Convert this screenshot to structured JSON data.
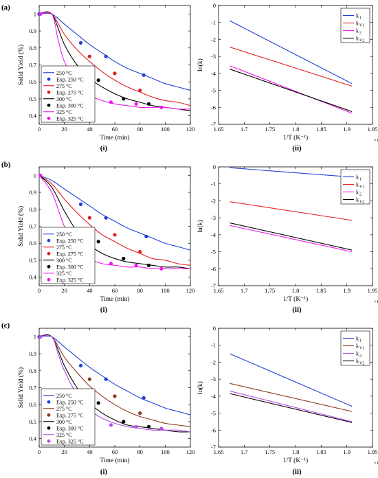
{
  "panel_labels": [
    "(a)",
    "(b)",
    "(c)"
  ],
  "sub_labels": [
    "(i)",
    "(ii)"
  ],
  "chart_data": [
    {
      "type": "line",
      "row": 0,
      "col": 0,
      "xlabel": "Time (min)",
      "ylabel": "Solid Yield (%)",
      "xlim": [
        0,
        120
      ],
      "ylim": [
        0.35,
        1.05
      ],
      "xticks": [
        0,
        20,
        40,
        60,
        80,
        100,
        120
      ],
      "xtick_labels": [
        "0",
        "20",
        "40",
        "60",
        "80",
        "100",
        "120"
      ],
      "yticks": [
        0.4,
        0.5,
        0.6,
        0.7,
        0.8,
        0.9,
        1.0
      ],
      "ytick_labels": [
        "0.4",
        "0.5",
        "0.6",
        "0.7",
        "0.8",
        "0.9",
        "1"
      ],
      "grid": false,
      "legend_position": "bottom-left",
      "series": [
        {
          "name": "250 °C",
          "kind": "line",
          "color": "#1f3fd8",
          "x": [
            0,
            10,
            20,
            30,
            40,
            50,
            60,
            70,
            80,
            90,
            100,
            110,
            120
          ],
          "y": [
            1.0,
            1.0,
            0.94,
            0.88,
            0.82,
            0.77,
            0.72,
            0.68,
            0.65,
            0.62,
            0.59,
            0.57,
            0.55
          ]
        },
        {
          "name": "Exp. 250 °C",
          "kind": "marker",
          "color": "#1f3fd8",
          "x": [
            0,
            33,
            53,
            83
          ],
          "y": [
            1.0,
            0.83,
            0.75,
            0.64
          ]
        },
        {
          "name": "275 °C",
          "kind": "line",
          "color": "#e01f1f",
          "x": [
            0,
            10,
            20,
            30,
            40,
            50,
            60,
            70,
            80,
            90,
            100,
            110,
            120
          ],
          "y": [
            1.0,
            1.0,
            0.88,
            0.79,
            0.72,
            0.66,
            0.61,
            0.57,
            0.54,
            0.51,
            0.49,
            0.48,
            0.46
          ]
        },
        {
          "name": "Exp. 275 °C",
          "kind": "marker",
          "color": "#e01f1f",
          "x": [
            40,
            60,
            80
          ],
          "y": [
            0.75,
            0.65,
            0.55
          ]
        },
        {
          "name": "300 °C",
          "kind": "line",
          "color": "#000000",
          "x": [
            0,
            10,
            20,
            30,
            40,
            50,
            60,
            70,
            80,
            90,
            100,
            110,
            120
          ],
          "y": [
            1.0,
            1.0,
            0.82,
            0.7,
            0.62,
            0.57,
            0.53,
            0.5,
            0.48,
            0.46,
            0.45,
            0.44,
            0.43
          ]
        },
        {
          "name": "Exp. 300 °C",
          "kind": "marker",
          "color": "#000000",
          "x": [
            47,
            67,
            87
          ],
          "y": [
            0.61,
            0.5,
            0.47
          ]
        },
        {
          "name": "325 °C",
          "kind": "line",
          "color": "#ee18ee",
          "x": [
            0,
            10,
            15,
            20,
            30,
            40,
            50,
            60,
            70,
            80,
            90,
            100,
            110,
            120
          ],
          "y": [
            1.0,
            1.0,
            0.85,
            0.72,
            0.59,
            0.52,
            0.49,
            0.47,
            0.46,
            0.45,
            0.45,
            0.45,
            0.44,
            0.44
          ]
        },
        {
          "name": "Exp. 325 °C",
          "kind": "marker",
          "color": "#ee18ee",
          "x": [
            1,
            57,
            77,
            97
          ],
          "y": [
            1.0,
            0.48,
            0.47,
            0.45
          ]
        }
      ]
    },
    {
      "type": "line",
      "row": 0,
      "col": 1,
      "xlabel": "1/T (K⁻¹)",
      "ylabel": "ln(k)",
      "x_multiplier": "×10⁻³",
      "xlim": [
        1.65,
        1.95
      ],
      "ylim": [
        -7,
        0
      ],
      "xticks": [
        1.65,
        1.7,
        1.75,
        1.8,
        1.85,
        1.9,
        1.95
      ],
      "xtick_labels": [
        "1.65",
        "1.7",
        "1.75",
        "1.8",
        "1.85",
        "1.9",
        "1.95"
      ],
      "yticks": [
        0,
        -1,
        -2,
        -3,
        -4,
        -5,
        -6,
        -7
      ],
      "ytick_labels": [
        "0",
        "-1",
        "-2",
        "-3",
        "-4",
        "-5",
        "-6",
        "-7"
      ],
      "grid": false,
      "legend_position": "top-right",
      "series": [
        {
          "name": "k",
          "sub": "1",
          "color": "#1f3fd8",
          "x": [
            1.672,
            1.91
          ],
          "y": [
            -0.9,
            -4.6
          ]
        },
        {
          "name": "k",
          "sub": "V1",
          "color": "#e01f1f",
          "x": [
            1.672,
            1.91
          ],
          "y": [
            -2.45,
            -4.75
          ]
        },
        {
          "name": "k",
          "sub": "2",
          "color": "#ee18ee",
          "x": [
            1.672,
            1.91
          ],
          "y": [
            -3.55,
            -6.35
          ]
        },
        {
          "name": "k",
          "sub": "V2",
          "color": "#000000",
          "x": [
            1.672,
            1.91
          ],
          "y": [
            -3.75,
            -6.25
          ]
        }
      ]
    },
    {
      "type": "line",
      "row": 1,
      "col": 0,
      "xlabel": "Time (min)",
      "ylabel": "Solid Yield (%)",
      "xlim": [
        0,
        120
      ],
      "ylim": [
        0.35,
        1.05
      ],
      "xticks": [
        0,
        20,
        40,
        60,
        80,
        100,
        120
      ],
      "xtick_labels": [
        "0",
        "20",
        "40",
        "60",
        "80",
        "100",
        "120"
      ],
      "yticks": [
        0.4,
        0.5,
        0.6,
        0.7,
        0.8,
        0.9,
        1.0
      ],
      "ytick_labels": [
        "0.4",
        "0.5",
        "0.6",
        "0.7",
        "0.8",
        "0.9",
        "1"
      ],
      "grid": false,
      "legend_position": "bottom-left",
      "series": [
        {
          "name": "250 °C",
          "kind": "line",
          "color": "#1f3fd8",
          "x": [
            0,
            10,
            20,
            30,
            40,
            50,
            60,
            70,
            80,
            90,
            100,
            110,
            120
          ],
          "y": [
            1.0,
            0.97,
            0.92,
            0.87,
            0.82,
            0.77,
            0.73,
            0.69,
            0.66,
            0.63,
            0.6,
            0.58,
            0.56
          ]
        },
        {
          "name": "Exp. 250 °C",
          "kind": "marker",
          "color": "#1f3fd8",
          "x": [
            33,
            53,
            85
          ],
          "y": [
            0.83,
            0.75,
            0.64
          ]
        },
        {
          "name": "275 °C",
          "kind": "line",
          "color": "#e01f1f",
          "x": [
            0,
            10,
            20,
            30,
            40,
            50,
            60,
            70,
            80,
            90,
            100,
            110,
            120
          ],
          "y": [
            1.0,
            0.95,
            0.86,
            0.78,
            0.71,
            0.65,
            0.61,
            0.57,
            0.54,
            0.51,
            0.5,
            0.48,
            0.47
          ]
        },
        {
          "name": "Exp. 275 °C",
          "kind": "marker",
          "color": "#e01f1f",
          "x": [
            40,
            60,
            80
          ],
          "y": [
            0.75,
            0.65,
            0.55
          ]
        },
        {
          "name": "300 °C",
          "kind": "line",
          "color": "#000000",
          "x": [
            0,
            10,
            20,
            30,
            40,
            50,
            60,
            70,
            80,
            90,
            100,
            110,
            120
          ],
          "y": [
            1.0,
            0.93,
            0.79,
            0.67,
            0.59,
            0.54,
            0.51,
            0.49,
            0.48,
            0.47,
            0.46,
            0.46,
            0.45
          ]
        },
        {
          "name": "Exp. 300 °C",
          "kind": "marker",
          "color": "#000000",
          "x": [
            47,
            67,
            87
          ],
          "y": [
            0.61,
            0.51,
            0.47
          ]
        },
        {
          "name": "325 °C",
          "kind": "line",
          "color": "#ee18ee",
          "x": [
            0,
            10,
            20,
            30,
            40,
            50,
            60,
            70,
            80,
            90,
            100,
            110,
            120
          ],
          "y": [
            1.0,
            0.9,
            0.7,
            0.57,
            0.51,
            0.48,
            0.47,
            0.46,
            0.46,
            0.45,
            0.45,
            0.45,
            0.45
          ]
        },
        {
          "name": "Exp. 325 °C",
          "kind": "marker",
          "color": "#ee18ee",
          "x": [
            1,
            57,
            77,
            97
          ],
          "y": [
            1.0,
            0.48,
            0.47,
            0.45
          ]
        }
      ]
    },
    {
      "type": "line",
      "row": 1,
      "col": 1,
      "xlabel": "1/T (K⁻¹)",
      "ylabel": "ln(k)",
      "x_multiplier": "×10⁻³",
      "xlim": [
        1.65,
        1.95
      ],
      "ylim": [
        -7,
        0
      ],
      "xticks": [
        1.65,
        1.7,
        1.75,
        1.8,
        1.85,
        1.9,
        1.95
      ],
      "xtick_labels": [
        "1.65",
        "1.7",
        "1.75",
        "1.8",
        "1.85",
        "1.9",
        "1.95"
      ],
      "yticks": [
        0,
        -1,
        -2,
        -3,
        -4,
        -5,
        -6,
        -7
      ],
      "ytick_labels": [
        "0",
        "-1",
        "-2",
        "-3",
        "-4",
        "-5",
        "-6",
        "-7"
      ],
      "grid": false,
      "legend_position": "top-right",
      "series": [
        {
          "name": "k",
          "sub": "1",
          "color": "#1f3fd8",
          "x": [
            1.672,
            1.91
          ],
          "y": [
            -0.05,
            -0.6
          ]
        },
        {
          "name": "k",
          "sub": "V1",
          "color": "#e01f1f",
          "x": [
            1.672,
            1.91
          ],
          "y": [
            -2.05,
            -3.15
          ]
        },
        {
          "name": "k",
          "sub": "2",
          "color": "#ee18ee",
          "x": [
            1.672,
            1.91
          ],
          "y": [
            -3.45,
            -5.0
          ]
        },
        {
          "name": "k",
          "sub": "V2",
          "color": "#000000",
          "x": [
            1.672,
            1.91
          ],
          "y": [
            -3.3,
            -4.9
          ]
        }
      ]
    },
    {
      "type": "line",
      "row": 2,
      "col": 0,
      "xlabel": "Time (min)",
      "ylabel": "Solid Yield (%)",
      "xlim": [
        0,
        120
      ],
      "ylim": [
        0.35,
        1.05
      ],
      "xticks": [
        0,
        20,
        40,
        60,
        80,
        100,
        120
      ],
      "xtick_labels": [
        "0",
        "20",
        "40",
        "60",
        "80",
        "100",
        "120"
      ],
      "yticks": [
        0.4,
        0.5,
        0.6,
        0.7,
        0.8,
        0.9,
        1.0
      ],
      "ytick_labels": [
        "0.4",
        "0.5",
        "0.6",
        "0.7",
        "0.8",
        "0.9",
        "1"
      ],
      "grid": false,
      "legend_position": "bottom-left",
      "series": [
        {
          "name": "250 °C",
          "kind": "line",
          "color": "#1f3fd8",
          "x": [
            0,
            10,
            20,
            30,
            40,
            50,
            60,
            70,
            80,
            90,
            100,
            110,
            120
          ],
          "y": [
            1.0,
            1.0,
            0.94,
            0.88,
            0.82,
            0.77,
            0.72,
            0.68,
            0.64,
            0.61,
            0.58,
            0.56,
            0.54
          ]
        },
        {
          "name": "Exp. 250 °C",
          "kind": "marker",
          "color": "#1f3fd8",
          "x": [
            0,
            33,
            53,
            83
          ],
          "y": [
            1.0,
            0.83,
            0.75,
            0.64
          ]
        },
        {
          "name": "275 °C",
          "kind": "line",
          "color": "#8b3a1a",
          "x": [
            0,
            10,
            20,
            30,
            40,
            50,
            60,
            70,
            80,
            90,
            100,
            110,
            120
          ],
          "y": [
            1.0,
            1.0,
            0.88,
            0.79,
            0.71,
            0.65,
            0.6,
            0.56,
            0.53,
            0.51,
            0.49,
            0.48,
            0.47
          ]
        },
        {
          "name": "Exp. 275 °C",
          "kind": "marker",
          "color": "#8b3a1a",
          "x": [
            40,
            60,
            80
          ],
          "y": [
            0.75,
            0.65,
            0.55
          ]
        },
        {
          "name": "300 °C",
          "kind": "line",
          "color": "#000000",
          "x": [
            0,
            10,
            20,
            30,
            40,
            50,
            60,
            70,
            80,
            90,
            100,
            110,
            120
          ],
          "y": [
            1.0,
            1.0,
            0.83,
            0.7,
            0.61,
            0.55,
            0.51,
            0.48,
            0.47,
            0.46,
            0.45,
            0.44,
            0.44
          ]
        },
        {
          "name": "Exp. 300 °C",
          "kind": "marker",
          "color": "#000000",
          "x": [
            47,
            67,
            87
          ],
          "y": [
            0.61,
            0.5,
            0.47
          ]
        },
        {
          "name": "325 °C",
          "kind": "line",
          "color": "#b44ee8",
          "x": [
            0,
            10,
            15,
            20,
            30,
            40,
            50,
            60,
            70,
            80,
            90,
            100,
            110,
            120
          ],
          "y": [
            1.0,
            1.0,
            0.9,
            0.8,
            0.66,
            0.57,
            0.52,
            0.49,
            0.47,
            0.46,
            0.45,
            0.45,
            0.45,
            0.44
          ]
        },
        {
          "name": "Exp. 325 °C",
          "kind": "marker",
          "color": "#b44ee8",
          "x": [
            1,
            57,
            77,
            97
          ],
          "y": [
            1.0,
            0.48,
            0.47,
            0.46
          ]
        }
      ]
    },
    {
      "type": "line",
      "row": 2,
      "col": 1,
      "xlabel": "1/T (K⁻¹)",
      "ylabel": "ln(k)",
      "x_multiplier": "×10⁻³",
      "xlim": [
        1.65,
        1.95
      ],
      "ylim": [
        -7,
        0
      ],
      "xticks": [
        1.65,
        1.7,
        1.75,
        1.8,
        1.85,
        1.9,
        1.95
      ],
      "xtick_labels": [
        "1.65",
        "1.7",
        "1.75",
        "1.8",
        "1.85",
        "1.9",
        "1.95"
      ],
      "yticks": [
        0,
        -1,
        -2,
        -3,
        -4,
        -5,
        -6,
        -7
      ],
      "ytick_labels": [
        "0",
        "-1",
        "-2",
        "-3",
        "-4",
        "-5",
        "-6",
        "-7"
      ],
      "grid": false,
      "legend_position": "top-right",
      "series": [
        {
          "name": "k",
          "sub": "1",
          "color": "#1f3fd8",
          "x": [
            1.672,
            1.91
          ],
          "y": [
            -1.5,
            -4.6
          ]
        },
        {
          "name": "k",
          "sub": "V1",
          "color": "#8b3a1a",
          "x": [
            1.672,
            1.91
          ],
          "y": [
            -3.25,
            -4.9
          ]
        },
        {
          "name": "k",
          "sub": "2",
          "color": "#b44ee8",
          "x": [
            1.672,
            1.91
          ],
          "y": [
            -3.7,
            -5.5
          ]
        },
        {
          "name": "k",
          "sub": "V2",
          "color": "#000000",
          "x": [
            1.672,
            1.91
          ],
          "y": [
            -3.85,
            -5.55
          ]
        }
      ]
    }
  ]
}
